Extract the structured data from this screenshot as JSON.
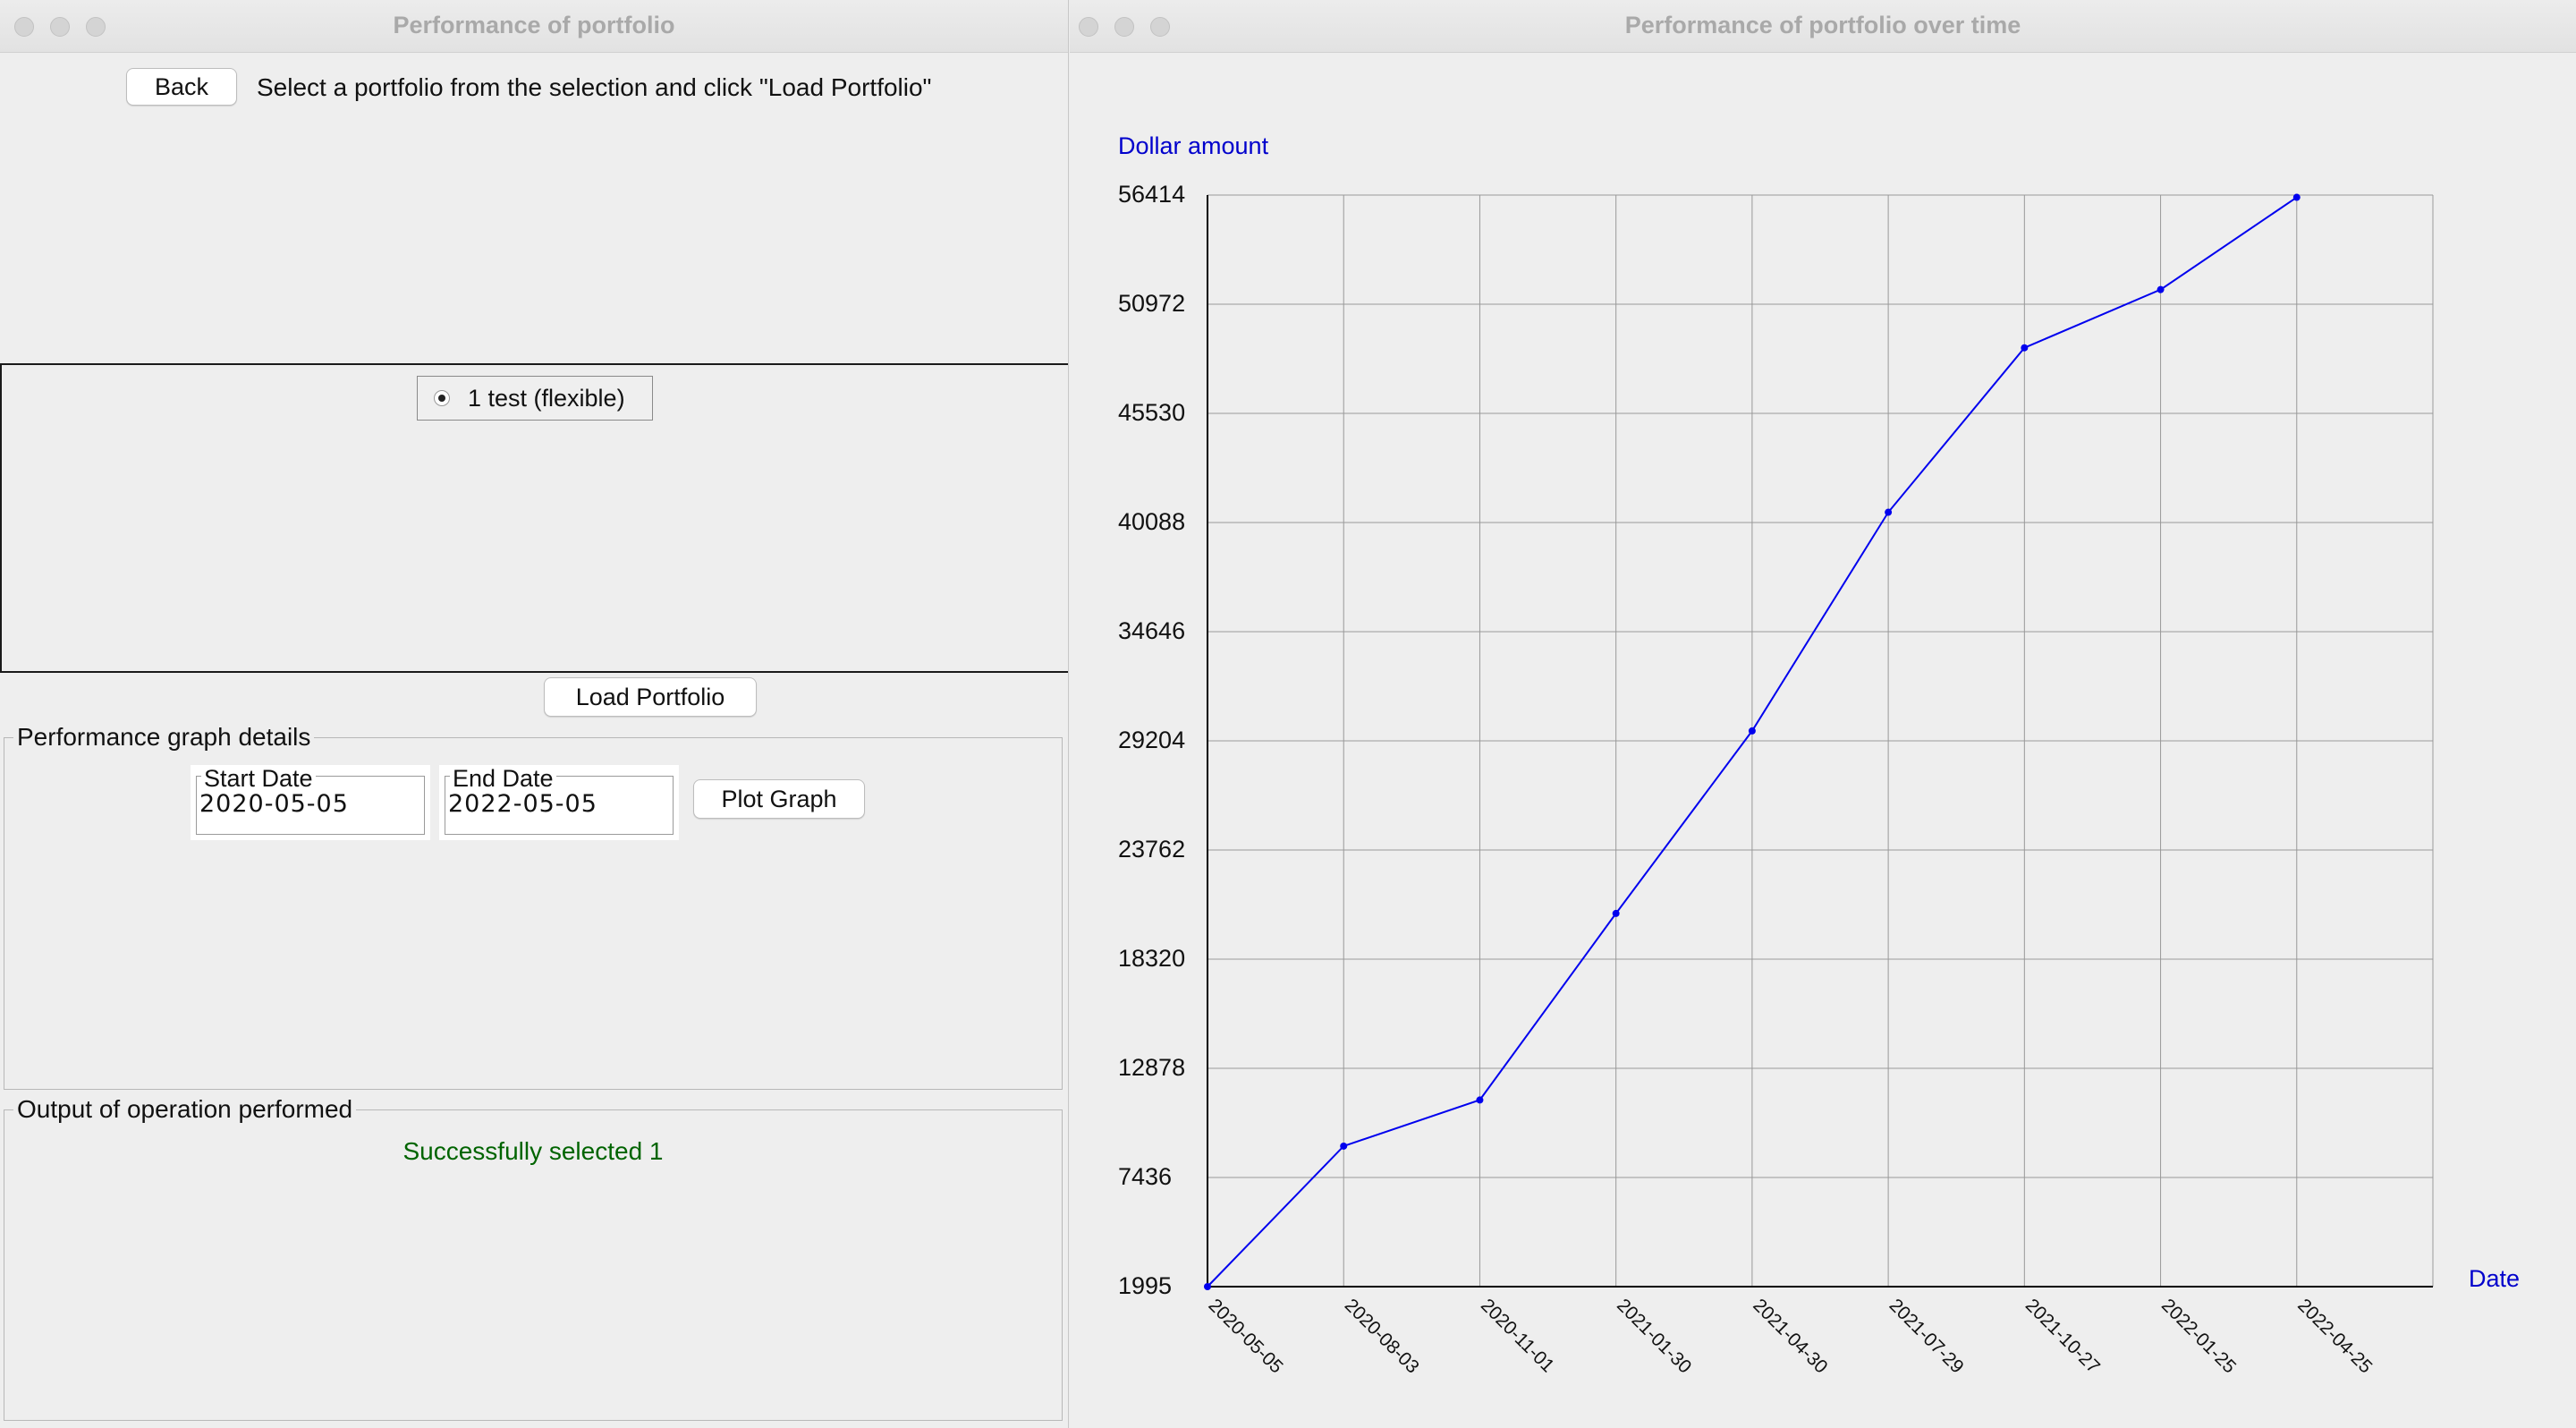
{
  "left_window": {
    "title": "Performance of portfolio",
    "back_label": "Back",
    "instruction": "Select a portfolio from the selection and click \"Load Portfolio\"",
    "portfolio_options": [
      {
        "label": "1 test (flexible)",
        "selected": true
      }
    ],
    "load_portfolio_label": "Load Portfolio",
    "graph_details": {
      "legend": "Performance graph details",
      "start_date_label": "Start Date",
      "start_date_value": "2020-05-05",
      "end_date_label": "End Date",
      "end_date_value": "2022-05-05",
      "plot_label": "Plot Graph"
    },
    "output": {
      "legend": "Output of operation performed",
      "message": "Successfully selected 1",
      "message_color": "#006400"
    }
  },
  "right_window": {
    "title": "Performance of portfolio over time"
  },
  "chart_data": {
    "type": "line",
    "ylabel": "Dollar amount",
    "xlabel": "Date",
    "x": [
      "2020-05-05",
      "2020-08-03",
      "2020-11-01",
      "2021-01-30",
      "2021-04-30",
      "2021-07-29",
      "2021-10-27",
      "2022-01-25",
      "2022-04-25"
    ],
    "values": [
      1995,
      9000,
      11300,
      20600,
      29700,
      40600,
      48800,
      51700,
      56300
    ],
    "y_ticks": [
      1995,
      7436,
      12878,
      18320,
      23762,
      29204,
      34646,
      40088,
      45530,
      50972,
      56414
    ],
    "ylim": [
      1995,
      56414
    ],
    "grid": true,
    "color": "#0000ee",
    "label_color": "#0000cc"
  }
}
